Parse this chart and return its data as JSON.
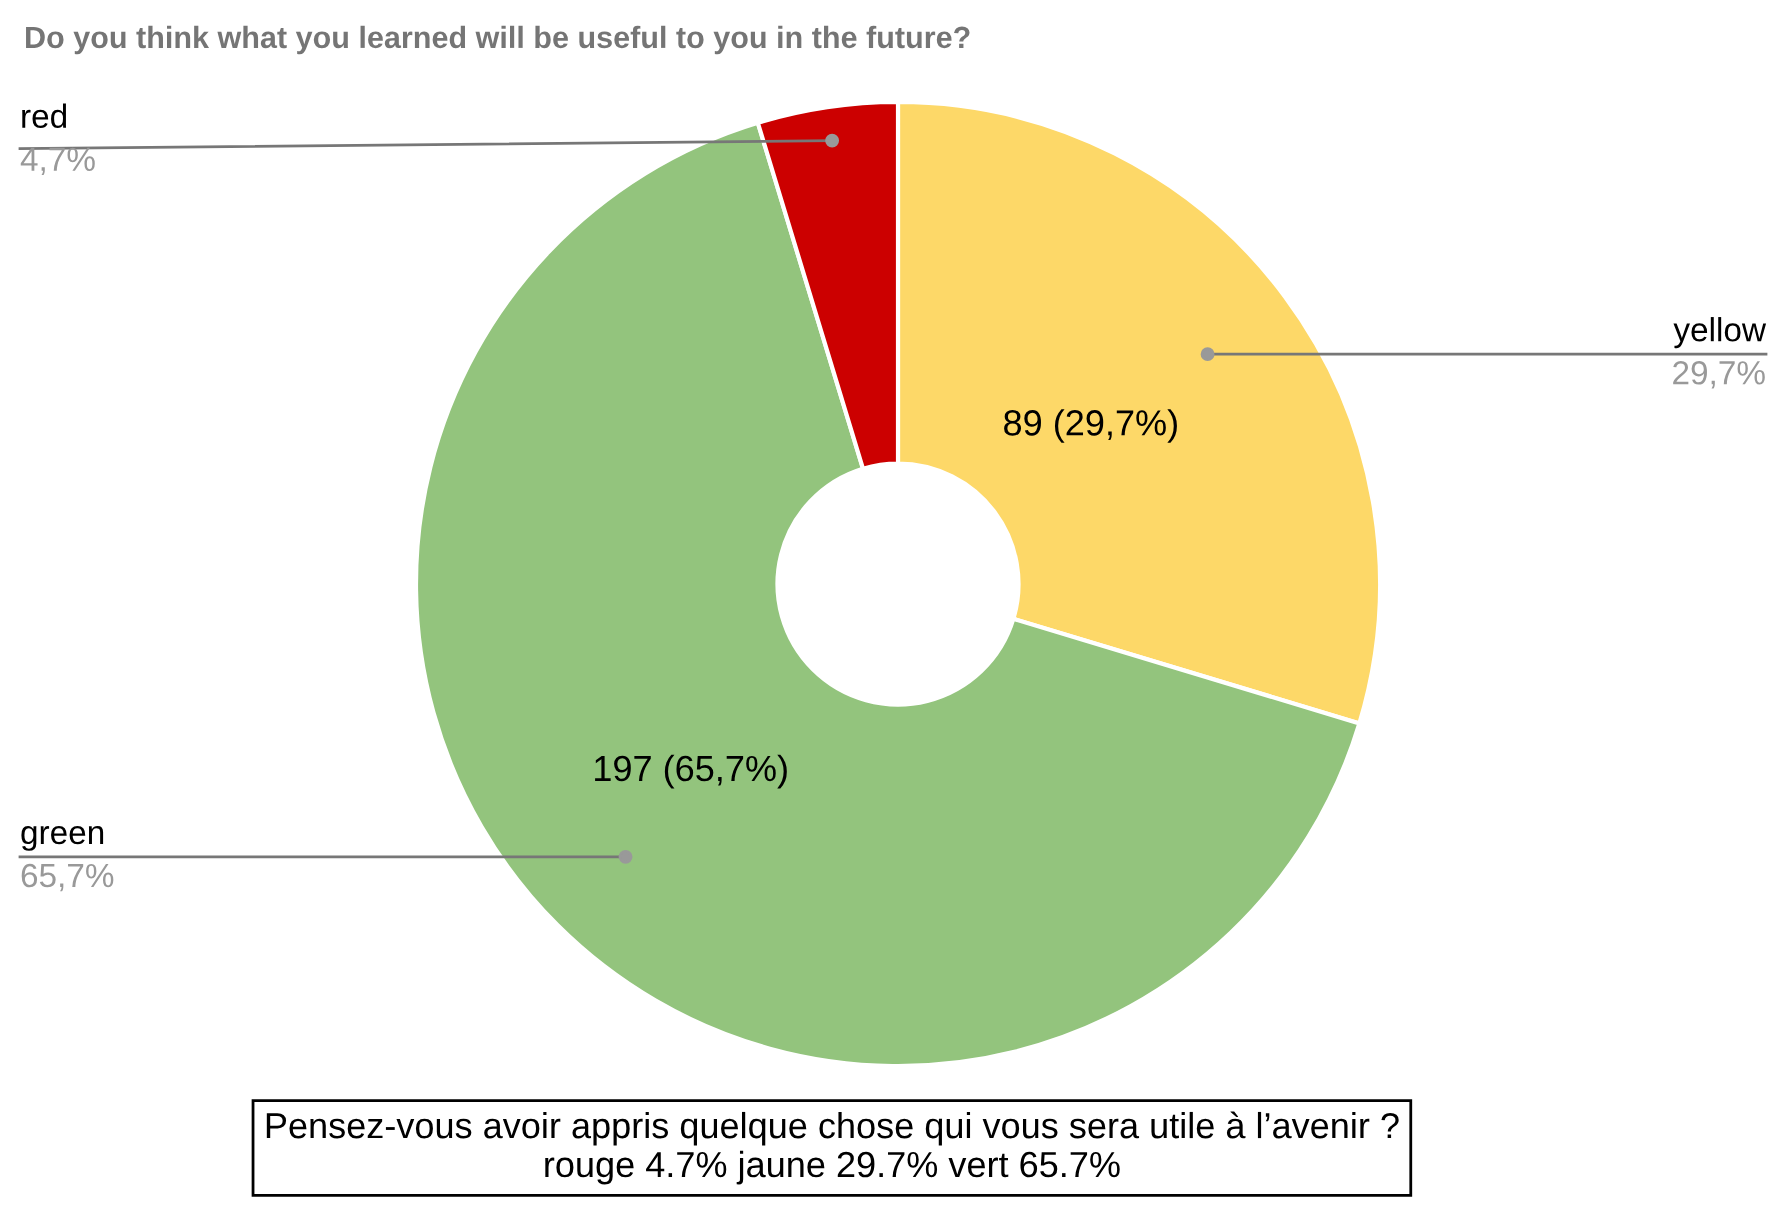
{
  "chart_data": {
    "type": "donut",
    "title": "Do you think what you learned will be useful to you in the future?",
    "categories": [
      "yellow",
      "green",
      "red"
    ],
    "values": [
      29.7,
      65.7,
      4.7
    ],
    "colors": [
      "#fdd868",
      "#93c47d",
      "#cc0000"
    ],
    "value_labels": [
      "89 (29,7%)",
      "197 (65,7%)",
      null
    ],
    "annotations": [
      {
        "text": "29,7%",
        "x": "yellow"
      },
      {
        "text": "65,7%",
        "x": "green"
      },
      {
        "text": "4,7%",
        "x": "red"
      },
      "Pensez-vous avoir appris quelque chose qui vous sera utile à l’avenir ?\nrouge 4.7% jaune 29.7% vert 65.7%"
    ]
  }
}
